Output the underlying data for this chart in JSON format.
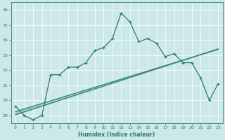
{
  "xlabel": "Humidex (Indice chaleur)",
  "background_color": "#cce8e8",
  "line_color": "#2e7d6e",
  "x": [
    0,
    1,
    2,
    3,
    4,
    5,
    6,
    7,
    8,
    9,
    10,
    11,
    12,
    13,
    14,
    15,
    16,
    17,
    18,
    19,
    20,
    21,
    22,
    23
  ],
  "y_main": [
    29.6,
    29.0,
    28.7,
    29.0,
    31.7,
    31.7,
    32.2,
    32.2,
    32.5,
    33.3,
    33.5,
    34.1,
    35.8,
    35.2,
    33.9,
    34.1,
    33.8,
    32.9,
    33.1,
    32.5,
    32.5,
    31.5,
    30.0,
    31.1
  ],
  "y_linear1": [
    29.05,
    29.24,
    29.43,
    29.62,
    29.81,
    30.0,
    30.19,
    30.38,
    30.57,
    30.76,
    30.95,
    31.14,
    31.33,
    31.52,
    31.71,
    31.9,
    32.09,
    32.28,
    32.47,
    32.66,
    32.85,
    33.04,
    33.23,
    33.42
  ],
  "y_linear2": [
    29.25,
    29.43,
    29.61,
    29.79,
    29.97,
    30.15,
    30.33,
    30.51,
    30.69,
    30.87,
    31.05,
    31.23,
    31.41,
    31.59,
    31.77,
    31.95,
    32.13,
    32.31,
    32.49,
    32.67,
    32.85,
    33.03,
    33.21,
    33.39
  ],
  "ylim": [
    28.5,
    36.5
  ],
  "yticks": [
    29,
    30,
    31,
    32,
    33,
    34,
    35,
    36
  ],
  "xlim": [
    -0.5,
    23.5
  ],
  "xticks": [
    0,
    1,
    2,
    3,
    4,
    5,
    6,
    7,
    8,
    9,
    10,
    11,
    12,
    13,
    14,
    15,
    16,
    17,
    18,
    19,
    20,
    21,
    22,
    23
  ]
}
